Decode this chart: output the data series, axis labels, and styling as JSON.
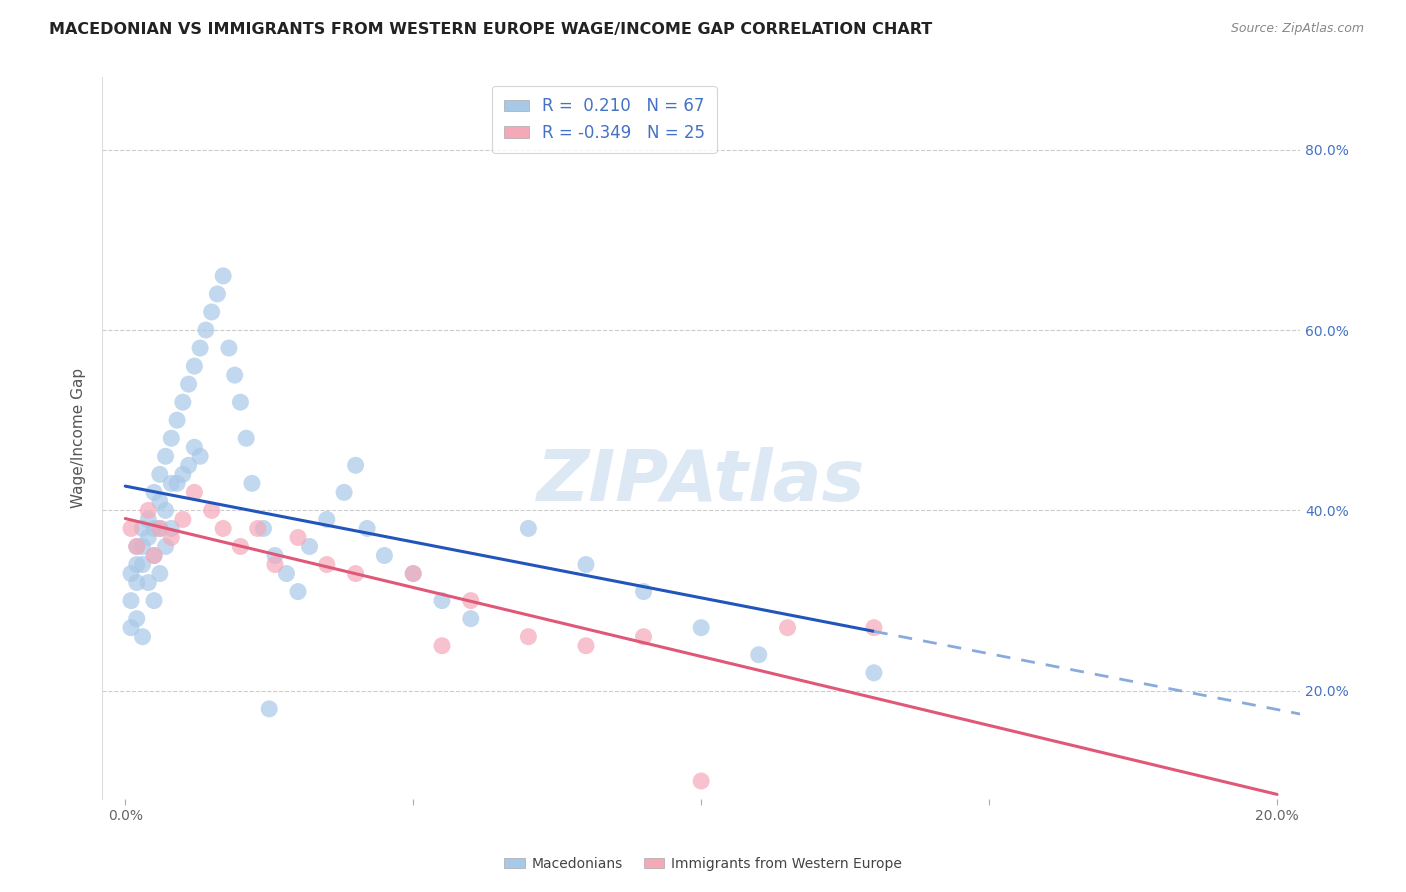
{
  "title": "MACEDONIAN VS IMMIGRANTS FROM WESTERN EUROPE WAGE/INCOME GAP CORRELATION CHART",
  "source": "Source: ZipAtlas.com",
  "ylabel": "Wage/Income Gap",
  "blue_R": 0.21,
  "blue_N": 67,
  "pink_R": -0.349,
  "pink_N": 25,
  "blue_color": "#A8C8E8",
  "pink_color": "#F4A8B8",
  "blue_line_color": "#2255BB",
  "blue_dash_color": "#88AADD",
  "pink_line_color": "#E05878",
  "legend_label_blue": "Macedonians",
  "legend_label_pink": "Immigrants from Western Europe",
  "background_color": "#FFFFFF",
  "grid_color": "#CCCCCC",
  "watermark_color": "#DDE8F5",
  "blue_scatter_x": [
    0.001,
    0.001,
    0.001,
    0.002,
    0.002,
    0.002,
    0.002,
    0.003,
    0.003,
    0.003,
    0.003,
    0.004,
    0.004,
    0.004,
    0.005,
    0.005,
    0.005,
    0.005,
    0.006,
    0.006,
    0.006,
    0.006,
    0.007,
    0.007,
    0.007,
    0.008,
    0.008,
    0.008,
    0.009,
    0.009,
    0.01,
    0.01,
    0.011,
    0.011,
    0.012,
    0.012,
    0.013,
    0.013,
    0.014,
    0.015,
    0.016,
    0.017,
    0.018,
    0.019,
    0.02,
    0.021,
    0.022,
    0.024,
    0.026,
    0.028,
    0.03,
    0.032,
    0.035,
    0.038,
    0.04,
    0.042,
    0.045,
    0.05,
    0.055,
    0.06,
    0.07,
    0.08,
    0.09,
    0.1,
    0.11,
    0.13,
    0.025
  ],
  "blue_scatter_y": [
    0.33,
    0.3,
    0.27,
    0.36,
    0.34,
    0.32,
    0.28,
    0.38,
    0.36,
    0.34,
    0.26,
    0.39,
    0.37,
    0.32,
    0.42,
    0.38,
    0.35,
    0.3,
    0.44,
    0.41,
    0.38,
    0.33,
    0.46,
    0.4,
    0.36,
    0.48,
    0.43,
    0.38,
    0.5,
    0.43,
    0.52,
    0.44,
    0.54,
    0.45,
    0.56,
    0.47,
    0.58,
    0.46,
    0.6,
    0.62,
    0.64,
    0.66,
    0.58,
    0.55,
    0.52,
    0.48,
    0.43,
    0.38,
    0.35,
    0.33,
    0.31,
    0.36,
    0.39,
    0.42,
    0.45,
    0.38,
    0.35,
    0.33,
    0.3,
    0.28,
    0.38,
    0.34,
    0.31,
    0.27,
    0.24,
    0.22,
    0.18
  ],
  "pink_scatter_x": [
    0.001,
    0.002,
    0.004,
    0.005,
    0.006,
    0.008,
    0.01,
    0.012,
    0.015,
    0.017,
    0.02,
    0.023,
    0.026,
    0.03,
    0.035,
    0.04,
    0.05,
    0.055,
    0.06,
    0.07,
    0.08,
    0.09,
    0.1,
    0.115,
    0.13
  ],
  "pink_scatter_y": [
    0.38,
    0.36,
    0.4,
    0.35,
    0.38,
    0.37,
    0.39,
    0.42,
    0.4,
    0.38,
    0.36,
    0.38,
    0.34,
    0.37,
    0.34,
    0.33,
    0.33,
    0.25,
    0.3,
    0.26,
    0.25,
    0.26,
    0.1,
    0.27,
    0.27
  ]
}
